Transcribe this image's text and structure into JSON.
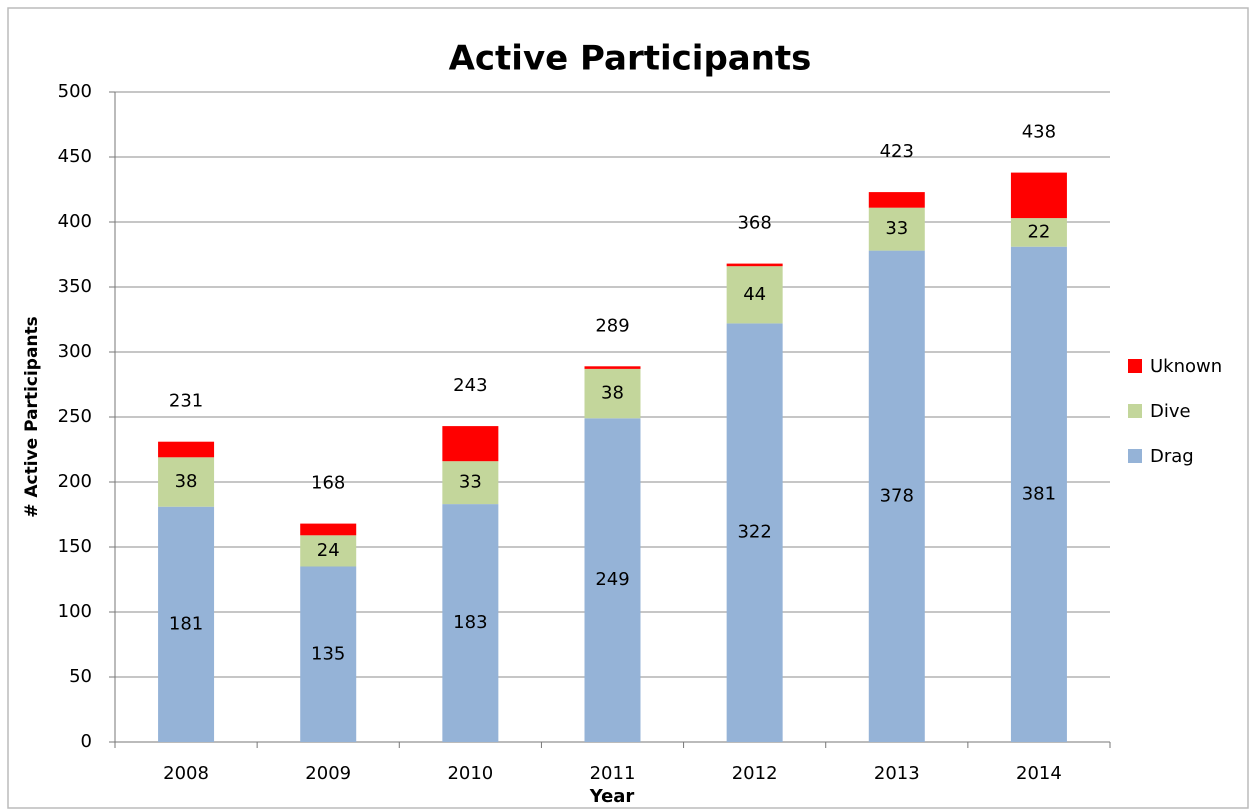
{
  "chart_data": {
    "type": "stacked_bar",
    "title": "Active Participants",
    "x_label": "Year",
    "y_label": "# Active Participants",
    "categories": [
      "2008",
      "2009",
      "2010",
      "2011",
      "2012",
      "2013",
      "2014"
    ],
    "series": [
      {
        "name": "Drag",
        "color": "#95b3d7",
        "values": [
          181,
          135,
          183,
          249,
          322,
          378,
          381
        ]
      },
      {
        "name": "Dive",
        "color": "#c3d69b",
        "values": [
          38,
          24,
          33,
          38,
          44,
          33,
          22
        ]
      },
      {
        "name": "Uknown",
        "color": "#ff0000",
        "values": [
          12,
          9,
          27,
          2,
          2,
          12,
          35
        ]
      }
    ],
    "totals": [
      231,
      168,
      243,
      289,
      368,
      423,
      438
    ],
    "labeled_series": [
      "Drag",
      "Dive"
    ],
    "ylim": [
      0,
      500
    ],
    "yticks": [
      0,
      50,
      100,
      150,
      200,
      250,
      300,
      350,
      400,
      450,
      500
    ],
    "grid": true,
    "legend": "right"
  }
}
